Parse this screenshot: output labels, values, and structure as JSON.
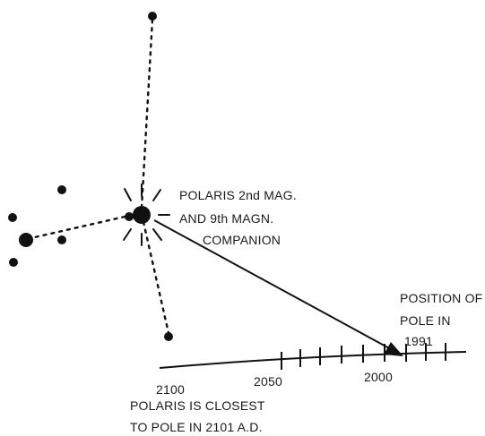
{
  "labels": {
    "polaris_line1": "POLARIS 2nd MAG.",
    "polaris_line2": "AND 9th MAGN.",
    "polaris_line3": "COMPANION",
    "position_line1": "POSITION OF",
    "position_line2": "POLE IN",
    "position_year": "1991",
    "tick_2000": "2000",
    "tick_2050": "2050",
    "tick_2100": "2100",
    "closest_line1": "POLARIS IS CLOSEST",
    "closest_line2": "TO POLE IN 2101 A.D."
  },
  "colors": {
    "ink": "#111111",
    "background": "#ffffff"
  }
}
